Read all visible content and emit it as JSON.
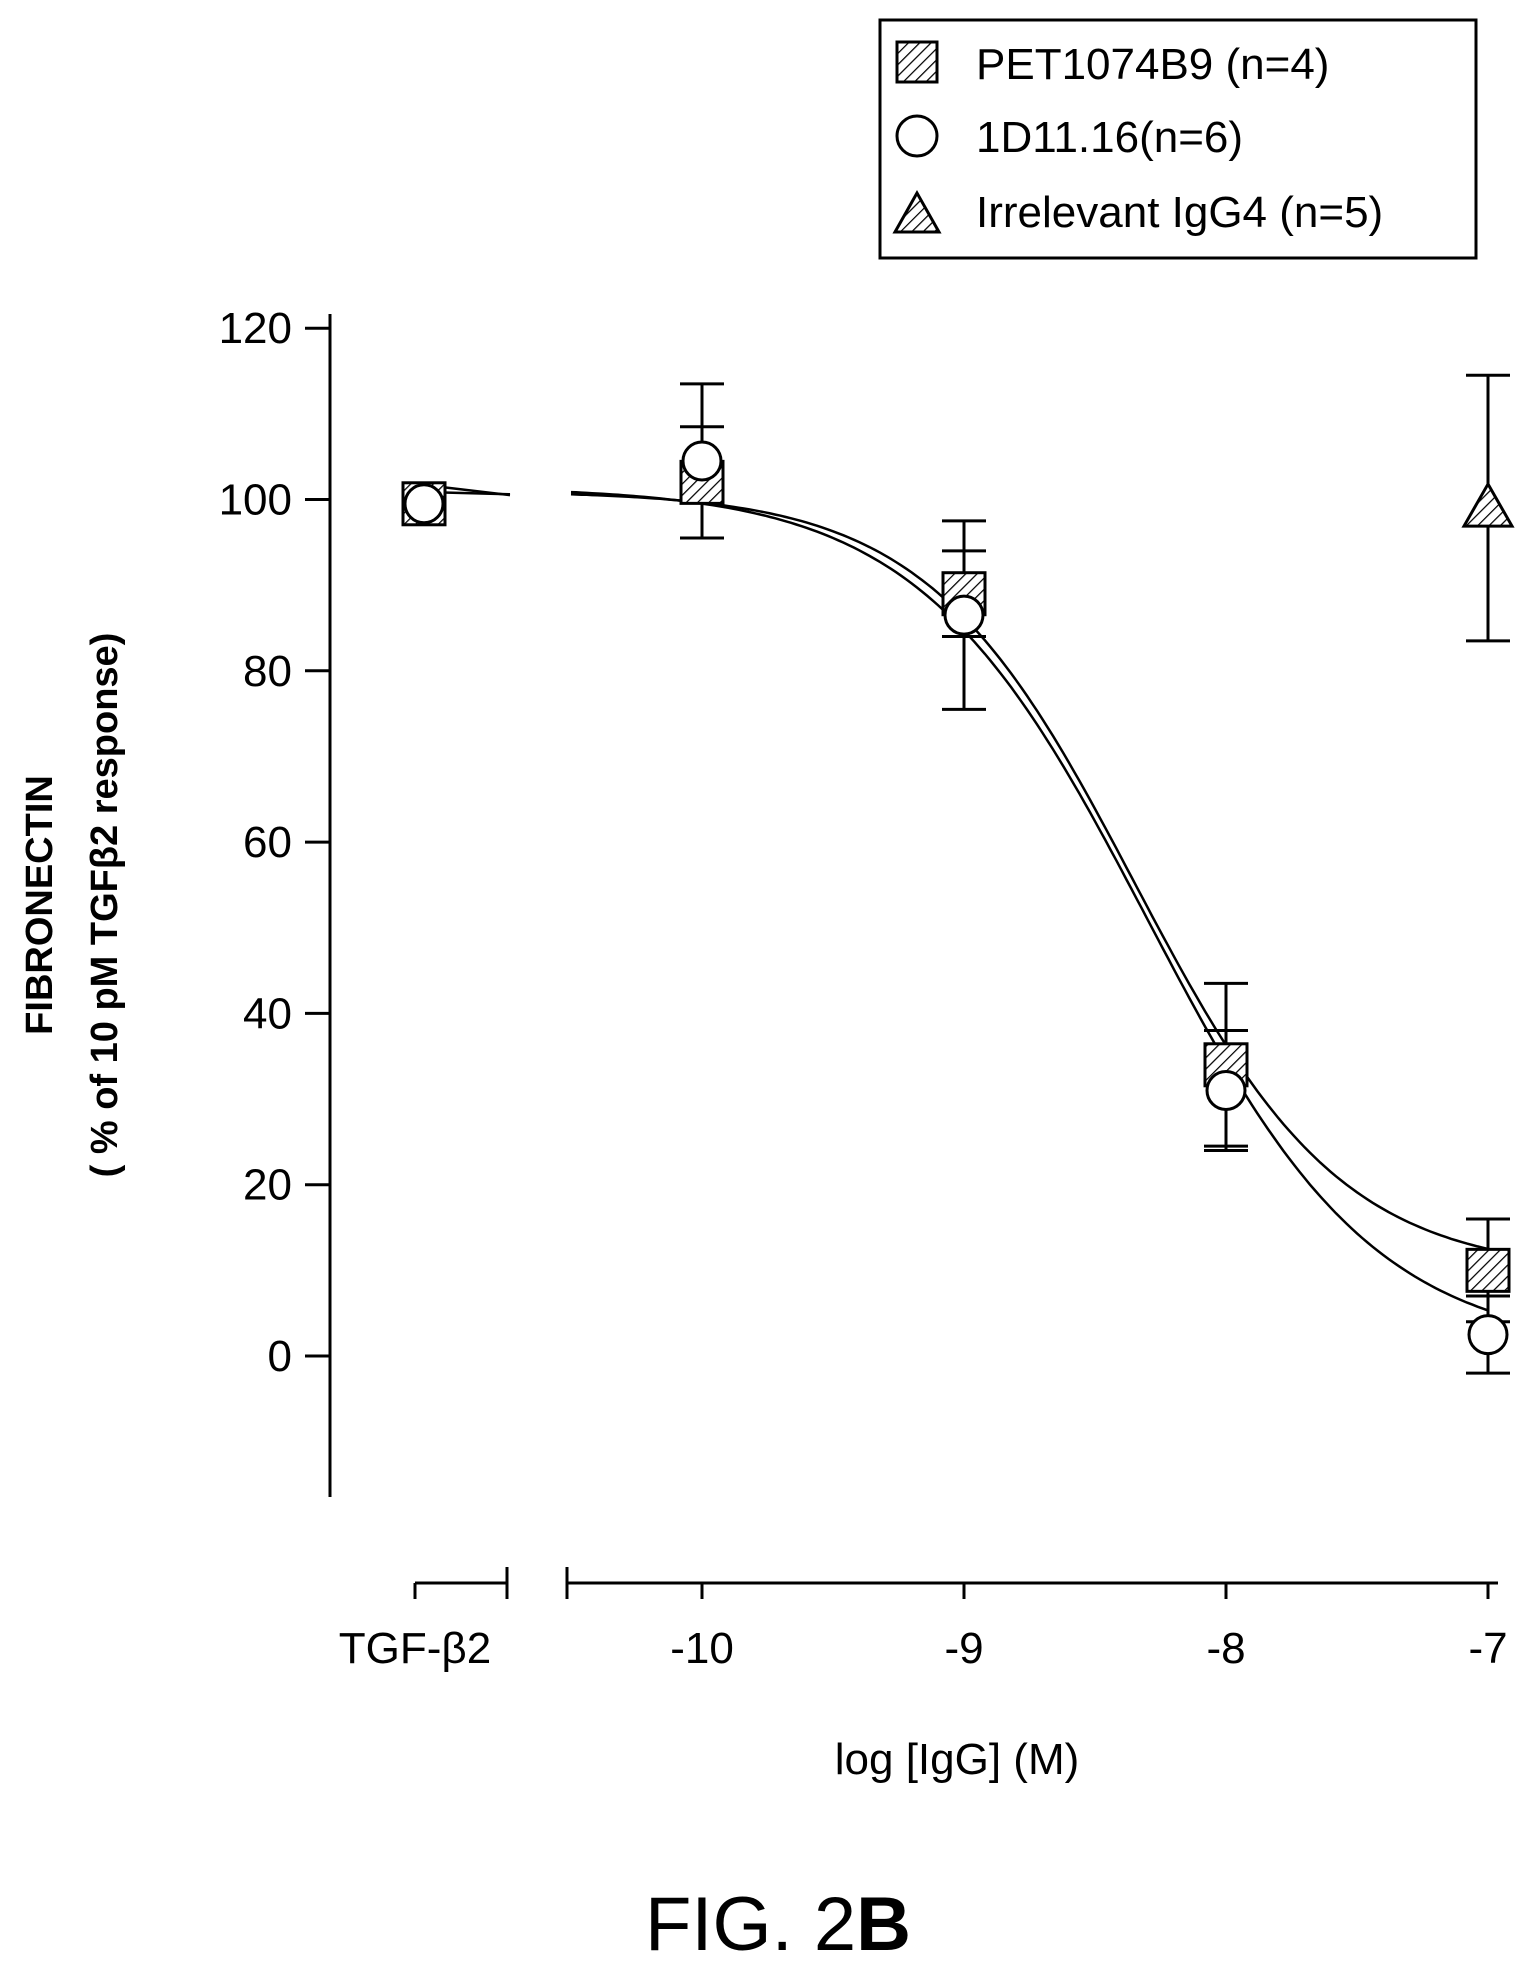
{
  "chart_data": {
    "type": "scatter",
    "xlabel": "log [IgG] (M)",
    "ylabel_line1": "FIBRONECTIN",
    "ylabel_line2": "( % of 10 pM TGFβ2 response)",
    "ylim": [
      -16,
      120
    ],
    "yticks": [
      "120",
      "100",
      "80",
      "60",
      "40",
      "20",
      "0"
    ],
    "xlim": [
      -10.5,
      -6.95
    ],
    "xticks": [
      "-10",
      "-9",
      "-8",
      "-7"
    ],
    "control_label": "TGF-β2",
    "legend_position": "top-right",
    "series": [
      {
        "name": "PET1074B9 (n=4)",
        "marker": "square-hatched",
        "control": {
          "y": 99.5,
          "err": 0
        },
        "x": [
          -10,
          -9,
          -8,
          -7
        ],
        "y": [
          102,
          89,
          34,
          10
        ],
        "err": [
          6.5,
          5,
          9.5,
          6
        ],
        "fit": {
          "top": 101,
          "bottom": 9.6,
          "logEC50": -8.35,
          "hill": -1.1
        }
      },
      {
        "name": "1D11.16(n=6)",
        "marker": "circle-open",
        "control": {
          "y": 99.5,
          "err": 0
        },
        "x": [
          -10,
          -9,
          -8,
          -7
        ],
        "y": [
          104.5,
          86.5,
          31,
          2.5
        ],
        "err": [
          9,
          11,
          7,
          4.5
        ],
        "fit": {
          "top": 101.5,
          "bottom": 0.5,
          "logEC50": -8.3,
          "hill": -1.0
        }
      },
      {
        "name": "Irrelevant IgG4 (n=5)",
        "marker": "triangle-hatched",
        "x": [
          -7
        ],
        "y": [
          99
        ],
        "err": [
          15.5
        ]
      }
    ]
  },
  "figure_label_prefix": "FIG. 2",
  "figure_label_suffix": "B"
}
